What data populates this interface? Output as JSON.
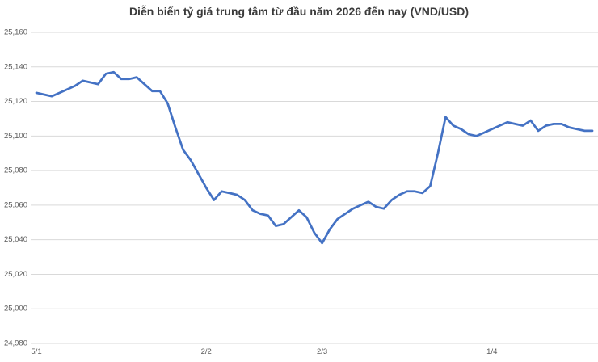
{
  "chart_data": {
    "type": "line",
    "title": "Diễn biến tỷ giá trung tâm từ đầu năm 2026 đến nay (VND/USD)",
    "legend": "none",
    "grid": "horizontal",
    "line_color": "#4472C4",
    "gridline_color": "#D9D9D9",
    "title_color": "#3B3B3B",
    "tick_label_color": "#595959",
    "y_axis": {
      "min": 24980,
      "max": 25160,
      "tick_step": 20,
      "ticks": [
        {
          "label": "25,160",
          "value": 25160
        },
        {
          "label": "25,140",
          "value": 25140
        },
        {
          "label": "25,120",
          "value": 25120
        },
        {
          "label": "25,100",
          "value": 25100
        },
        {
          "label": "25,080",
          "value": 25080
        },
        {
          "label": "25,060",
          "value": 25060
        },
        {
          "label": "25,040",
          "value": 25040
        },
        {
          "label": "25,020",
          "value": 25020
        },
        {
          "label": "25,000",
          "value": 25000
        },
        {
          "label": "24,980",
          "value": 24980
        }
      ]
    },
    "x_axis": {
      "ticks": [
        {
          "label": "5/1",
          "index": 0
        },
        {
          "label": "2/2",
          "index": 22
        },
        {
          "label": "2/3",
          "index": 37
        },
        {
          "label": "1/4",
          "index": 59
        }
      ]
    },
    "values": [
      25125,
      25124,
      25123,
      25125,
      25127,
      25129,
      25132,
      25131,
      25130,
      25136,
      25137,
      25133,
      25133,
      25134,
      25130,
      25126,
      25126,
      25119,
      25105,
      25092,
      25086,
      25078,
      25070,
      25063,
      25068,
      25067,
      25066,
      25063,
      25057,
      25055,
      25054,
      25048,
      25049,
      25053,
      25057,
      25053,
      25044,
      25038,
      25046,
      25052,
      25055,
      25058,
      25060,
      25062,
      25059,
      25058,
      25063,
      25066,
      25068,
      25068,
      25067,
      25071,
      25090,
      25111,
      25106,
      25104,
      25101,
      25100,
      25102,
      25104,
      25106,
      25108,
      25107,
      25106,
      25109,
      25103,
      25106,
      25107,
      25107,
      25105,
      25104,
      25103,
      25103
    ]
  }
}
